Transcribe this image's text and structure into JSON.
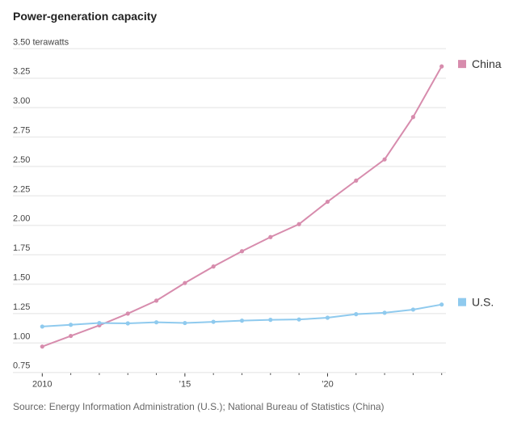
{
  "chart_data": {
    "type": "line",
    "title": "Power-generation capacity",
    "ylabel_unit": "terawatts",
    "source": "Source: Energy Information Administration (U.S.); National Bureau of Statistics (China)",
    "x": [
      2010,
      2011,
      2012,
      2013,
      2014,
      2015,
      2016,
      2017,
      2018,
      2019,
      2020,
      2021,
      2022,
      2023,
      2024
    ],
    "xticks": [
      {
        "value": 2010,
        "label": "2010"
      },
      {
        "value": 2015,
        "label": "’15"
      },
      {
        "value": 2020,
        "label": "’20"
      }
    ],
    "xlim": [
      2010,
      2024
    ],
    "ylim": [
      0.75,
      3.5
    ],
    "yticks": [
      {
        "value": 3.5,
        "label": "3.50 terawatts"
      },
      {
        "value": 3.25,
        "label": "3.25"
      },
      {
        "value": 3.0,
        "label": "3.00"
      },
      {
        "value": 2.75,
        "label": "2.75"
      },
      {
        "value": 2.5,
        "label": "2.50"
      },
      {
        "value": 2.25,
        "label": "2.25"
      },
      {
        "value": 2.0,
        "label": "2.00"
      },
      {
        "value": 1.75,
        "label": "1.75"
      },
      {
        "value": 1.5,
        "label": "1.50"
      },
      {
        "value": 1.25,
        "label": "1.25"
      },
      {
        "value": 1.0,
        "label": "1.00"
      },
      {
        "value": 0.75,
        "label": "0.75"
      }
    ],
    "grid": true,
    "legend_placement": "right, at line ends",
    "series": [
      {
        "name": "China",
        "color": "#d78cad",
        "values": [
          0.97,
          1.06,
          1.15,
          1.25,
          1.36,
          1.51,
          1.65,
          1.78,
          1.9,
          2.01,
          2.2,
          2.38,
          2.56,
          2.92,
          3.35
        ]
      },
      {
        "name": "U.S.",
        "color": "#8fcaee",
        "values": [
          1.14,
          1.155,
          1.17,
          1.167,
          1.176,
          1.17,
          1.18,
          1.19,
          1.197,
          1.2,
          1.215,
          1.245,
          1.257,
          1.284,
          1.327
        ]
      }
    ]
  }
}
